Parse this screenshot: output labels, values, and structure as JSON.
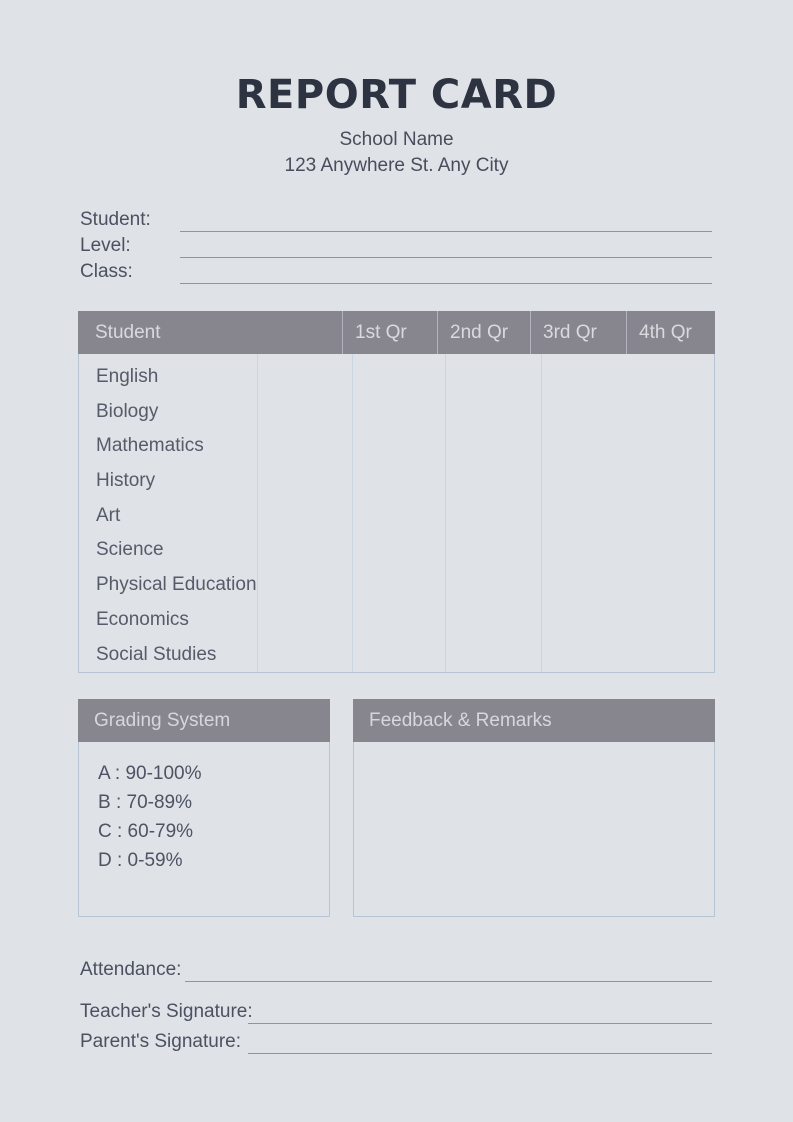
{
  "colors": {
    "page_background": "#dfe2e7",
    "title_text": "#2e3342",
    "body_text": "#4b5160",
    "section_header_background": "#87868e",
    "section_header_text": "#d9dade",
    "table_border": "#b6c4d4",
    "table_divider": "#ccd6e1",
    "fill_line": "#8f949d"
  },
  "header": {
    "title": "REPORT CARD",
    "school_name": "School Name",
    "school_address": "123 Anywhere St. Any City"
  },
  "student_info": {
    "fields": [
      {
        "label": "Student:",
        "value": ""
      },
      {
        "label": "Level:",
        "value": ""
      },
      {
        "label": "Class:",
        "value": ""
      }
    ]
  },
  "grades_table": {
    "columns": [
      "Student",
      "1st Qr",
      "2nd Qr",
      "3rd Qr",
      "4th Qr"
    ],
    "rows": [
      {
        "subject": "English",
        "values": [
          "",
          "",
          "",
          ""
        ]
      },
      {
        "subject": "Biology",
        "values": [
          "",
          "",
          "",
          ""
        ]
      },
      {
        "subject": "Mathematics",
        "values": [
          "",
          "",
          "",
          ""
        ]
      },
      {
        "subject": "History",
        "values": [
          "",
          "",
          "",
          ""
        ]
      },
      {
        "subject": "Art",
        "values": [
          "",
          "",
          "",
          ""
        ]
      },
      {
        "subject": "Science",
        "values": [
          "",
          "",
          "",
          ""
        ]
      },
      {
        "subject": "Physical Education",
        "values": [
          "",
          "",
          "",
          ""
        ]
      },
      {
        "subject": "Economics",
        "values": [
          "",
          "",
          "",
          ""
        ]
      },
      {
        "subject": "Social Studies",
        "values": [
          "",
          "",
          "",
          ""
        ]
      }
    ]
  },
  "grading_system": {
    "title": "Grading System",
    "entries": [
      "A : 90-100%",
      "B : 70-89%",
      "C : 60-79%",
      "D : 0-59%"
    ]
  },
  "feedback": {
    "title": "Feedback & Remarks",
    "content": ""
  },
  "footer": {
    "fields": [
      {
        "label": "Attendance:",
        "value": ""
      },
      {
        "label": "Teacher's Signature:",
        "value": ""
      },
      {
        "label": "Parent's Signature:",
        "value": ""
      }
    ]
  }
}
